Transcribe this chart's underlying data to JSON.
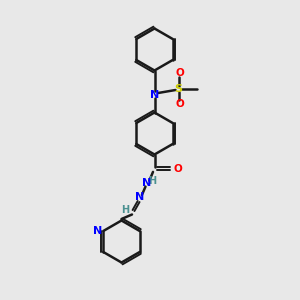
{
  "bg_color": "#e8e8e8",
  "bond_color": "#1a1a1a",
  "N_color": "#0000ff",
  "O_color": "#ff0000",
  "S_color": "#cccc00",
  "H_color": "#4a9090",
  "figsize": [
    3.0,
    3.0
  ],
  "dpi": 100,
  "xlim": [
    0,
    10
  ],
  "ylim": [
    0,
    10
  ]
}
